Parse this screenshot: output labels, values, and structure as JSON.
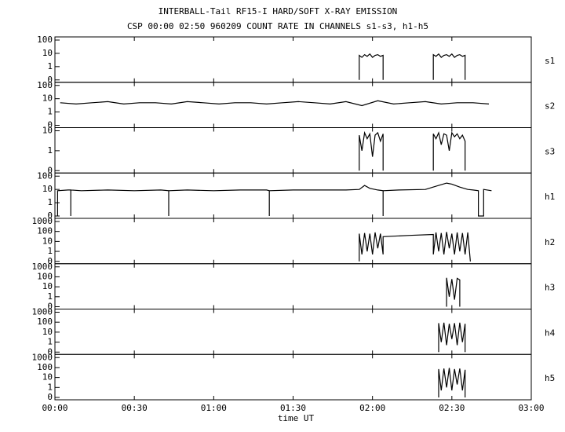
{
  "chart_data": {
    "type": "line",
    "title": "INTERBALL-Tail RF15-I HARD/SOFT X-RAY EMISSION",
    "subtitle": "CSP 00:00 02:50 960209  COUNT RATE IN CHANNELS s1-s3, h1-h5",
    "xlabel": "time UT",
    "xlim": [
      0,
      180
    ],
    "xticks": [
      {
        "value": 0,
        "label": "00:00"
      },
      {
        "value": 30,
        "label": "00:30"
      },
      {
        "value": 60,
        "label": "01:00"
      },
      {
        "value": 90,
        "label": "01:30"
      },
      {
        "value": 120,
        "label": "02:00"
      },
      {
        "value": 150,
        "label": "02:30"
      },
      {
        "value": 180,
        "label": "03:00"
      }
    ],
    "log_scale": true,
    "color": "#000000",
    "panels": [
      {
        "name": "s1",
        "ylim": [
          0,
          100
        ],
        "yticks": [
          0,
          1,
          10,
          100
        ],
        "x": [
          115,
          115,
          116,
          117,
          118,
          119,
          120,
          121,
          122,
          123,
          124,
          124,
          134,
          143,
          143,
          144,
          145,
          146,
          147,
          148,
          149,
          150,
          151,
          152,
          153,
          154,
          155,
          155
        ],
        "values": [
          0,
          7,
          5,
          8,
          6,
          9,
          5,
          7,
          8,
          6,
          7,
          0,
          null,
          0,
          8,
          6,
          9,
          5,
          7,
          8,
          6,
          9,
          5,
          7,
          8,
          6,
          7,
          0
        ]
      },
      {
        "name": "s2",
        "ylim": [
          0,
          100
        ],
        "yticks": [
          0,
          1,
          10,
          100
        ],
        "x": [
          2,
          8,
          14,
          20,
          26,
          32,
          38,
          44,
          50,
          56,
          62,
          68,
          74,
          80,
          86,
          92,
          98,
          104,
          110,
          116,
          122,
          128,
          134,
          140,
          146,
          152,
          158,
          164
        ],
        "values": [
          5,
          4,
          5,
          6,
          4,
          5,
          5,
          4,
          6,
          5,
          4,
          5,
          5,
          4,
          5,
          6,
          5,
          4,
          6,
          3,
          7,
          4,
          5,
          6,
          4,
          5,
          5,
          4
        ]
      },
      {
        "name": "s3",
        "ylim": [
          0,
          10
        ],
        "yticks": [
          0,
          1,
          10
        ],
        "x": [
          115,
          115,
          116,
          117,
          118,
          119,
          120,
          121,
          122,
          123,
          124,
          124,
          134,
          143,
          143,
          144,
          145,
          146,
          147,
          148,
          149,
          150,
          151,
          152,
          153,
          154,
          155,
          155
        ],
        "values": [
          0,
          6,
          1,
          8,
          4,
          7,
          0.5,
          6,
          8,
          3,
          7,
          0,
          null,
          0,
          7,
          4,
          8,
          2,
          7,
          6,
          1,
          8,
          5,
          7,
          4,
          6,
          3,
          0
        ]
      },
      {
        "name": "h1",
        "ylim": [
          0,
          100
        ],
        "yticks": [
          0,
          1,
          10,
          100
        ],
        "x": [
          1,
          1,
          5,
          6,
          6,
          6,
          10,
          20,
          30,
          40,
          43,
          43,
          43,
          50,
          60,
          70,
          80,
          81,
          81,
          81,
          90,
          100,
          110,
          115,
          117,
          119,
          122,
          124,
          124,
          124,
          130,
          140,
          145,
          148,
          150,
          153,
          156,
          158,
          160,
          160,
          162,
          162,
          165
        ],
        "values": [
          0,
          8,
          9,
          9,
          0,
          9,
          8,
          9,
          8,
          9,
          8,
          0,
          8,
          9,
          8,
          9,
          9,
          8,
          0,
          8,
          9,
          9,
          9,
          10,
          20,
          12,
          9,
          8,
          0,
          8,
          9,
          10,
          20,
          30,
          25,
          15,
          10,
          9,
          8,
          0,
          0,
          10,
          8
        ]
      },
      {
        "name": "h2",
        "ylim": [
          0,
          1000
        ],
        "yticks": [
          0,
          1,
          10,
          100,
          1000
        ],
        "x": [
          115,
          115,
          116,
          117,
          118,
          119,
          120,
          121,
          122,
          123,
          124,
          124,
          134,
          143,
          143,
          144,
          145,
          146,
          147,
          148,
          149,
          150,
          151,
          152,
          153,
          154,
          155,
          156,
          157
        ],
        "values": [
          0,
          60,
          0.5,
          70,
          1,
          60,
          0.5,
          80,
          2,
          60,
          0.5,
          30,
          40,
          50,
          0.5,
          80,
          1,
          70,
          0.5,
          90,
          2,
          60,
          0.5,
          80,
          1,
          70,
          0.5,
          80,
          0
        ]
      },
      {
        "name": "h3",
        "ylim": [
          0,
          1000
        ],
        "yticks": [
          0,
          1,
          10,
          100,
          1000
        ],
        "x": [
          148,
          148,
          149,
          150,
          151,
          152,
          153,
          153
        ],
        "values": [
          0,
          80,
          1,
          60,
          0.5,
          70,
          50,
          0
        ]
      },
      {
        "name": "h4",
        "ylim": [
          0,
          1000
        ],
        "yticks": [
          0,
          1,
          10,
          100,
          1000
        ],
        "x": [
          145,
          145,
          146,
          147,
          148,
          149,
          150,
          151,
          152,
          153,
          154,
          155,
          155
        ],
        "values": [
          0,
          80,
          1,
          90,
          0.5,
          70,
          2,
          80,
          0.5,
          90,
          1,
          70,
          0
        ]
      },
      {
        "name": "h5",
        "ylim": [
          0,
          1000
        ],
        "yticks": [
          0,
          1,
          10,
          100,
          1000
        ],
        "x": [
          145,
          145,
          146,
          147,
          148,
          149,
          150,
          151,
          152,
          153,
          154,
          155,
          155
        ],
        "values": [
          0,
          70,
          0.5,
          80,
          1,
          90,
          0.5,
          70,
          2,
          80,
          0.5,
          60,
          0
        ]
      }
    ]
  }
}
